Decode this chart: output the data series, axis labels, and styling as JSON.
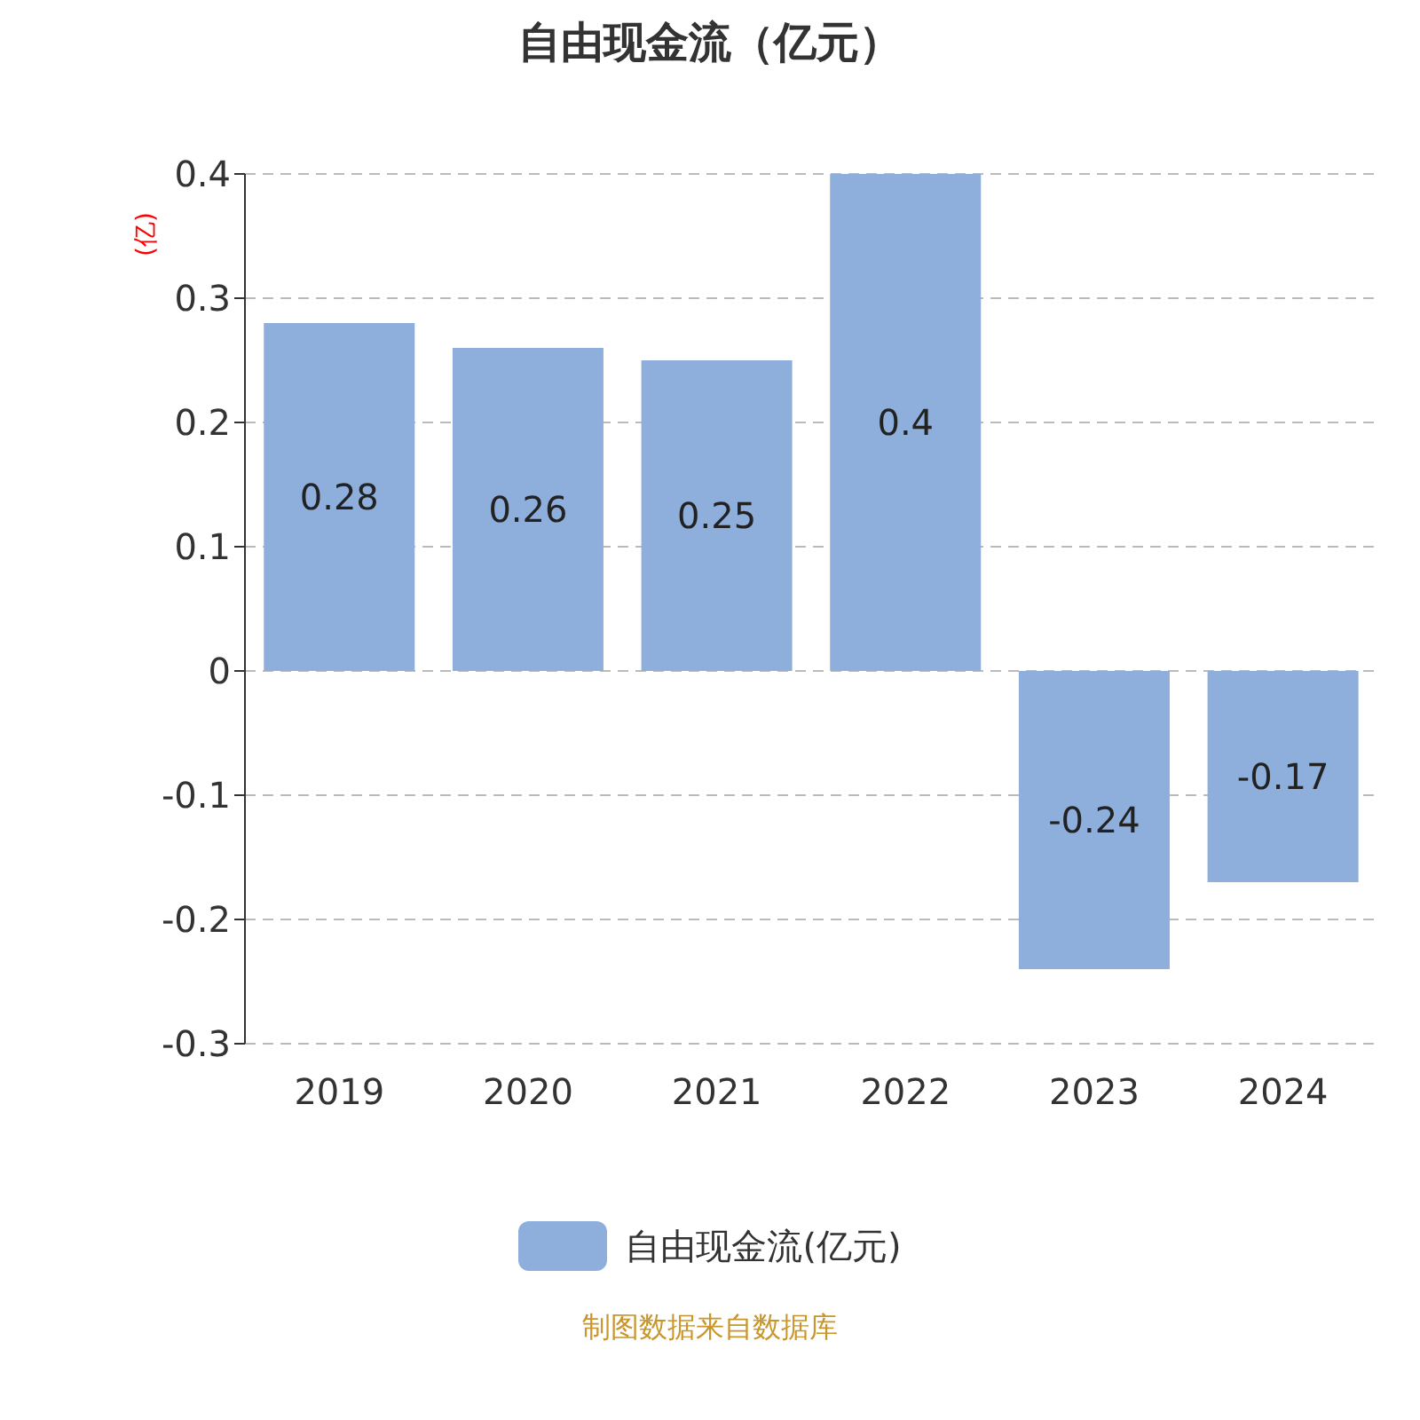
{
  "chart_data": {
    "type": "bar",
    "title": "自由现金流（亿元）",
    "ylabel": "(亿)",
    "categories": [
      "2019",
      "2020",
      "2021",
      "2022",
      "2023",
      "2024"
    ],
    "series": [
      {
        "name": "自由现金流(亿元)",
        "color": "#8eaedb",
        "values": [
          0.28,
          0.26,
          0.25,
          0.4,
          -0.24,
          -0.17
        ]
      }
    ],
    "ylim": [
      -0.3,
      0.4
    ],
    "yticks": [
      -0.3,
      -0.2,
      -0.1,
      0,
      0.1,
      0.2,
      0.3,
      0.4
    ],
    "grid": "y",
    "legend": "bottom",
    "data_labels": true,
    "annotations": [
      "制图数据来自数据库"
    ]
  }
}
